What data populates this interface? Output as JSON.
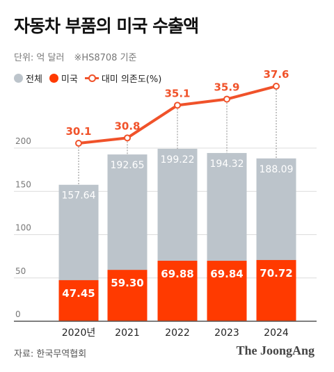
{
  "title": "자동차 부품의 미국 수출액",
  "unit_label": "단위: 억 달러",
  "note": "※HS8708 기준",
  "legend": {
    "total": "전체",
    "us": "미국",
    "ratio": "대미 의존도(%)"
  },
  "colors": {
    "total": "#bcc4cb",
    "us": "#ff3a00",
    "ratio": "#f0522a",
    "grid": "#dcdcdc",
    "axis": "#555555"
  },
  "source": "자료: 한국무역협회",
  "logo": "The JoongAng",
  "chart_data": {
    "type": "bar",
    "categories": [
      "2020년",
      "2021",
      "2022",
      "2023",
      "2024"
    ],
    "series": [
      {
        "name": "전체",
        "values": [
          157.64,
          192.65,
          199.22,
          194.32,
          188.09
        ],
        "labels": [
          "157.64",
          "192.65",
          "199.22",
          "194.32",
          "188.09"
        ]
      },
      {
        "name": "미국",
        "values": [
          47.45,
          59.3,
          69.88,
          69.84,
          70.72
        ],
        "labels": [
          "47.45",
          "59.30",
          "69.88",
          "69.84",
          "70.72"
        ]
      },
      {
        "name": "대미 의존도(%)",
        "type": "line",
        "values": [
          30.1,
          30.8,
          35.1,
          35.9,
          37.6
        ],
        "labels": [
          "30.1",
          "30.8",
          "35.1",
          "35.9",
          "37.6"
        ]
      }
    ],
    "y_ticks": [
      "0",
      "50",
      "100",
      "150",
      "200"
    ],
    "ylim": [
      0,
      200
    ],
    "grid": true,
    "legend_position": "top-left"
  }
}
